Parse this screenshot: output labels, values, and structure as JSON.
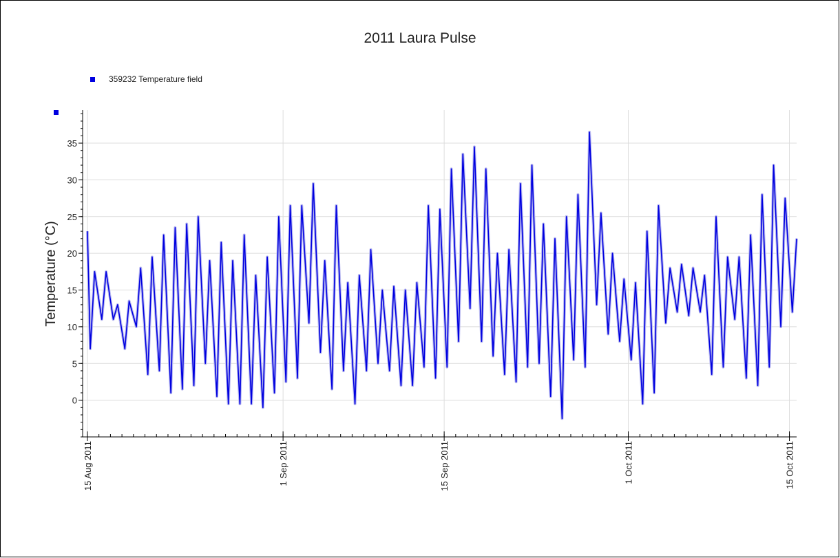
{
  "chart_data": {
    "type": "line",
    "title": "2011 Laura Pulse",
    "y_label": "Temperature (°C)",
    "xlim": [
      "2011-08-14T14:00",
      "2011-10-15T15:00"
    ],
    "xticks": [
      {
        "value": "2011-08-15",
        "label": "15 Aug 2011"
      },
      {
        "value": "2011-09-01",
        "label": "1 Sep 2011"
      },
      {
        "value": "2011-09-15",
        "label": "15 Sep 2011"
      },
      {
        "value": "2011-10-01",
        "label": "1 Oct 2011"
      },
      {
        "value": "2011-10-15",
        "label": "15 Oct 2011"
      }
    ],
    "ylim": [
      -5,
      39.5
    ],
    "yticks": [
      0,
      5,
      10,
      15,
      20,
      25,
      30,
      35
    ],
    "grid": true,
    "x": [
      "2011-08-15T00:00",
      "2011-08-15T06:00",
      "2011-08-15T15:00",
      "2011-08-16T06:00",
      "2011-08-16T15:00",
      "2011-08-17T06:00",
      "2011-08-17T15:00",
      "2011-08-18T06:00",
      "2011-08-18T15:00",
      "2011-08-19T06:00",
      "2011-08-19T15:00",
      "2011-08-20T06:00",
      "2011-08-20T15:00",
      "2011-08-21T06:00",
      "2011-08-21T15:00",
      "2011-08-22T06:00",
      "2011-08-22T15:00",
      "2011-08-23T06:00",
      "2011-08-23T15:00",
      "2011-08-24T06:00",
      "2011-08-24T15:00",
      "2011-08-25T06:00",
      "2011-08-25T15:00",
      "2011-08-26T06:00",
      "2011-08-26T15:00",
      "2011-08-27T06:00",
      "2011-08-27T15:00",
      "2011-08-28T06:00",
      "2011-08-28T15:00",
      "2011-08-29T06:00",
      "2011-08-29T15:00",
      "2011-08-30T06:00",
      "2011-08-30T15:00",
      "2011-08-31T06:00",
      "2011-08-31T15:00",
      "2011-09-01T06:00",
      "2011-09-01T15:00",
      "2011-09-02T06:00",
      "2011-09-02T15:00",
      "2011-09-03T06:00",
      "2011-09-03T15:00",
      "2011-09-04T06:00",
      "2011-09-04T15:00",
      "2011-09-05T06:00",
      "2011-09-05T15:00",
      "2011-09-06T06:00",
      "2011-09-06T15:00",
      "2011-09-07T06:00",
      "2011-09-07T15:00",
      "2011-09-08T06:00",
      "2011-09-08T15:00",
      "2011-09-09T06:00",
      "2011-09-09T15:00",
      "2011-09-10T06:00",
      "2011-09-10T15:00",
      "2011-09-11T06:00",
      "2011-09-11T15:00",
      "2011-09-12T06:00",
      "2011-09-12T15:00",
      "2011-09-13T06:00",
      "2011-09-13T15:00",
      "2011-09-14T06:00",
      "2011-09-14T15:00",
      "2011-09-15T06:00",
      "2011-09-15T15:00",
      "2011-09-16T06:00",
      "2011-09-16T15:00",
      "2011-09-17T06:00",
      "2011-09-17T15:00",
      "2011-09-18T06:00",
      "2011-09-18T15:00",
      "2011-09-19T06:00",
      "2011-09-19T15:00",
      "2011-09-20T06:00",
      "2011-09-20T15:00",
      "2011-09-21T06:00",
      "2011-09-21T15:00",
      "2011-09-22T06:00",
      "2011-09-22T15:00",
      "2011-09-23T06:00",
      "2011-09-23T15:00",
      "2011-09-24T06:00",
      "2011-09-24T15:00",
      "2011-09-25T06:00",
      "2011-09-25T15:00",
      "2011-09-26T06:00",
      "2011-09-26T15:00",
      "2011-09-27T06:00",
      "2011-09-27T15:00",
      "2011-09-28T06:00",
      "2011-09-28T15:00",
      "2011-09-29T06:00",
      "2011-09-29T15:00",
      "2011-09-30T06:00",
      "2011-09-30T15:00",
      "2011-10-01T06:00",
      "2011-10-01T15:00",
      "2011-10-02T06:00",
      "2011-10-02T15:00",
      "2011-10-03T06:00",
      "2011-10-03T15:00",
      "2011-10-04T06:00",
      "2011-10-04T15:00",
      "2011-10-05T06:00",
      "2011-10-05T15:00",
      "2011-10-06T06:00",
      "2011-10-06T15:00",
      "2011-10-07T06:00",
      "2011-10-07T15:00",
      "2011-10-08T06:00",
      "2011-10-08T15:00",
      "2011-10-09T06:00",
      "2011-10-09T15:00",
      "2011-10-10T06:00",
      "2011-10-10T15:00",
      "2011-10-11T06:00",
      "2011-10-11T15:00",
      "2011-10-12T06:00",
      "2011-10-12T15:00",
      "2011-10-13T06:00",
      "2011-10-13T15:00",
      "2011-10-14T06:00",
      "2011-10-14T15:00",
      "2011-10-15T06:00",
      "2011-10-15T15:00"
    ],
    "series": [
      {
        "name": "359232  Temperature field",
        "color": "#0000e0",
        "values": [
          23,
          7,
          17.5,
          11,
          17.5,
          11,
          13,
          7,
          13.5,
          10,
          18,
          3.5,
          19.5,
          4,
          22.5,
          1,
          23.5,
          1.5,
          24,
          2,
          25,
          5,
          19,
          0.5,
          21.5,
          -0.5,
          19,
          -0.5,
          22.5,
          -0.5,
          17,
          -1,
          19.5,
          1,
          25,
          2.5,
          26.5,
          3,
          26.5,
          10.5,
          29.5,
          6.5,
          19,
          1.5,
          26.5,
          4,
          16,
          -0.5,
          17,
          4,
          20.5,
          5,
          15,
          4,
          15.5,
          2,
          15,
          2,
          16,
          4.5,
          26.5,
          3,
          26,
          4.5,
          31.5,
          8,
          33.5,
          12.5,
          34.5,
          8,
          31.5,
          6,
          20,
          3.5,
          20.5,
          2.5,
          29.5,
          4.5,
          32,
          5,
          24,
          0.5,
          22,
          -2.5,
          25,
          5.5,
          28,
          4.5,
          36.5,
          13,
          25.5,
          9,
          20,
          8,
          16.5,
          5.5,
          16,
          -0.5,
          23,
          1,
          26.5,
          10.5,
          18,
          12,
          18.5,
          11.5,
          18,
          12,
          17,
          3.5,
          25,
          4.5,
          19.5,
          11,
          19.5,
          3,
          22.5,
          2,
          28,
          4.5,
          32,
          10,
          27.5,
          12,
          22
        ]
      }
    ]
  }
}
